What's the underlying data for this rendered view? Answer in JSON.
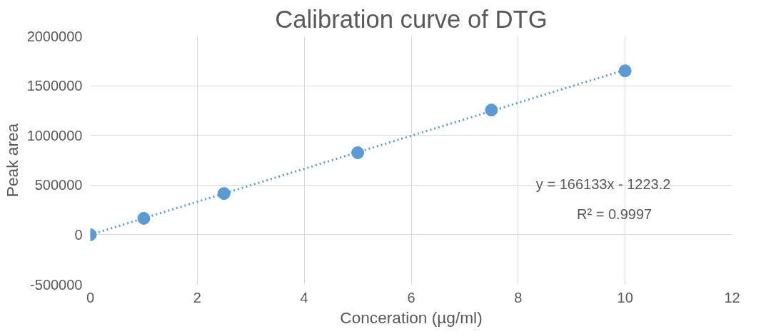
{
  "chart_data": {
    "type": "scatter",
    "title": "Calibration curve of DTG",
    "xlabel": "Conceration (µg/ml)",
    "ylabel": "Peak area",
    "xlim": [
      0,
      12
    ],
    "xticks": [
      0,
      2,
      4,
      6,
      8,
      10,
      12
    ],
    "ylim": [
      -500000,
      2000000
    ],
    "yticks": [
      -500000,
      0,
      500000,
      1000000,
      1500000,
      2000000
    ],
    "grid": true,
    "series": [
      {
        "color": "#5b9bd5",
        "marker": "circle",
        "x": [
          0,
          1,
          2.5,
          5,
          7.5,
          10
        ],
        "values": [
          0,
          165000,
          415000,
          825000,
          1255000,
          1650000
        ]
      },
      {
        "type": "line",
        "color": "#5b9bd5",
        "line_style": "dotted",
        "marker": "none",
        "x": [
          0,
          10
        ],
        "values": [
          0,
          1660000
        ]
      }
    ],
    "annotations": [
      "y = 166133x - 1223.2",
      "R² = 0.9997"
    ]
  }
}
